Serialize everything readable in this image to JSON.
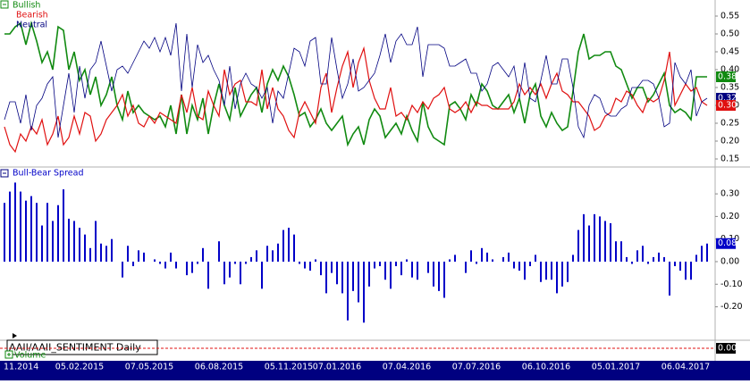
{
  "chart_data": [
    {
      "type": "line",
      "ylim": [
        0.13,
        0.595
      ],
      "yticks": [
        0.15,
        {
          "value": 0.2,
          "label": "0.20"
        },
        0.25,
        {
          "value": 0.3,
          "label": "0.30"
        },
        0.35,
        {
          "value": 0.4,
          "label": "0.40"
        },
        0.45,
        {
          "value": 0.5,
          "label": "0.50"
        },
        0.55
      ],
      "categories": [
        "11.2014",
        null,
        null,
        null,
        null,
        null,
        null,
        null,
        null,
        null,
        null,
        null,
        null,
        null,
        "05.02.2015",
        null,
        null,
        null,
        null,
        null,
        null,
        null,
        null,
        null,
        null,
        null,
        null,
        "07.05.2015",
        null,
        null,
        null,
        null,
        null,
        null,
        null,
        null,
        null,
        null,
        null,
        null,
        "06.08.2015",
        null,
        null,
        null,
        null,
        null,
        null,
        null,
        null,
        null,
        null,
        null,
        null,
        "05.11.2015",
        null,
        null,
        null,
        null,
        null,
        null,
        null,
        null,
        "07.01.2016",
        null,
        null,
        null,
        null,
        null,
        null,
        null,
        null,
        null,
        null,
        null,
        null,
        "07.04.2016",
        null,
        null,
        null,
        null,
        null,
        null,
        null,
        null,
        null,
        null,
        null,
        null,
        "07.07.2016",
        null,
        null,
        null,
        null,
        null,
        null,
        null,
        null,
        null,
        null,
        null,
        null,
        "06.10.2016",
        null,
        null,
        null,
        null,
        null,
        null,
        null,
        null,
        null,
        null,
        null,
        null,
        "05.01.2017",
        null,
        null,
        null,
        null,
        null,
        null,
        null,
        null,
        null,
        null,
        null,
        null,
        "06.04.2017",
        null,
        null,
        null,
        null
      ],
      "series": [
        {
          "name": "Bullish",
          "color": "#118a11",
          "last_value_label": "0.38",
          "values": [
            0.5,
            0.5,
            0.52,
            0.53,
            0.47,
            0.53,
            0.48,
            0.42,
            0.45,
            0.4,
            0.52,
            0.51,
            0.4,
            0.45,
            0.37,
            0.4,
            0.33,
            0.38,
            0.3,
            0.33,
            0.38,
            0.3,
            0.26,
            0.34,
            0.28,
            0.3,
            0.28,
            0.27,
            0.26,
            0.27,
            0.24,
            0.3,
            0.22,
            0.33,
            0.22,
            0.3,
            0.26,
            0.32,
            0.22,
            0.3,
            0.36,
            0.3,
            0.26,
            0.35,
            0.27,
            0.3,
            0.33,
            0.35,
            0.28,
            0.36,
            0.4,
            0.37,
            0.41,
            0.38,
            0.33,
            0.27,
            0.28,
            0.24,
            0.26,
            0.29,
            0.25,
            0.23,
            0.25,
            0.27,
            0.19,
            0.22,
            0.24,
            0.19,
            0.26,
            0.29,
            0.27,
            0.21,
            0.23,
            0.25,
            0.22,
            0.27,
            0.23,
            0.2,
            0.31,
            0.24,
            0.21,
            0.2,
            0.19,
            0.3,
            0.31,
            0.29,
            0.26,
            0.33,
            0.3,
            0.36,
            0.34,
            0.3,
            0.29,
            0.31,
            0.33,
            0.28,
            0.32,
            0.25,
            0.33,
            0.36,
            0.27,
            0.24,
            0.28,
            0.25,
            0.23,
            0.24,
            0.34,
            0.45,
            0.5,
            0.43,
            0.44,
            0.44,
            0.45,
            0.45,
            0.41,
            0.4,
            0.36,
            0.32,
            0.35,
            0.35,
            0.31,
            0.33,
            0.36,
            0.39,
            0.3,
            0.28,
            0.29,
            0.28,
            0.26,
            0.38,
            0.38,
            0.38
          ]
        },
        {
          "name": "Bearish",
          "color": "#e01010",
          "last_value_label": "0.30",
          "values": [
            0.24,
            0.19,
            0.17,
            0.22,
            0.2,
            0.24,
            0.22,
            0.26,
            0.19,
            0.22,
            0.27,
            0.19,
            0.21,
            0.27,
            0.22,
            0.28,
            0.27,
            0.2,
            0.22,
            0.26,
            0.28,
            0.3,
            0.33,
            0.27,
            0.3,
            0.25,
            0.24,
            0.27,
            0.25,
            0.28,
            0.27,
            0.26,
            0.25,
            0.33,
            0.28,
            0.35,
            0.27,
            0.26,
            0.34,
            0.3,
            0.27,
            0.4,
            0.33,
            0.36,
            0.37,
            0.31,
            0.31,
            0.3,
            0.4,
            0.29,
            0.35,
            0.29,
            0.27,
            0.23,
            0.21,
            0.28,
            0.31,
            0.28,
            0.25,
            0.35,
            0.39,
            0.28,
            0.35,
            0.41,
            0.45,
            0.35,
            0.42,
            0.46,
            0.37,
            0.32,
            0.29,
            0.29,
            0.35,
            0.27,
            0.28,
            0.26,
            0.3,
            0.28,
            0.31,
            0.29,
            0.32,
            0.33,
            0.35,
            0.29,
            0.28,
            0.29,
            0.31,
            0.28,
            0.31,
            0.3,
            0.3,
            0.29,
            0.29,
            0.29,
            0.29,
            0.31,
            0.36,
            0.33,
            0.35,
            0.33,
            0.36,
            0.32,
            0.36,
            0.39,
            0.34,
            0.33,
            0.31,
            0.31,
            0.29,
            0.27,
            0.23,
            0.24,
            0.27,
            0.28,
            0.32,
            0.31,
            0.34,
            0.33,
            0.3,
            0.28,
            0.32,
            0.31,
            0.32,
            0.37,
            0.45,
            0.3,
            0.33,
            0.36,
            0.34,
            0.35,
            0.31,
            0.3
          ]
        },
        {
          "name": "Neutral",
          "color": "#000080",
          "last_value_label": "0.32",
          "values": [
            0.26,
            0.31,
            0.31,
            0.25,
            0.33,
            0.23,
            0.3,
            0.32,
            0.36,
            0.38,
            0.21,
            0.3,
            0.39,
            0.28,
            0.41,
            0.32,
            0.4,
            0.42,
            0.48,
            0.41,
            0.34,
            0.4,
            0.41,
            0.39,
            0.42,
            0.45,
            0.48,
            0.46,
            0.49,
            0.45,
            0.49,
            0.44,
            0.53,
            0.34,
            0.5,
            0.35,
            0.47,
            0.42,
            0.44,
            0.4,
            0.37,
            0.3,
            0.41,
            0.29,
            0.36,
            0.39,
            0.36,
            0.35,
            0.32,
            0.35,
            0.25,
            0.34,
            0.32,
            0.39,
            0.46,
            0.45,
            0.41,
            0.48,
            0.49,
            0.36,
            0.36,
            0.49,
            0.4,
            0.32,
            0.36,
            0.43,
            0.34,
            0.35,
            0.37,
            0.39,
            0.44,
            0.5,
            0.42,
            0.48,
            0.5,
            0.47,
            0.47,
            0.52,
            0.38,
            0.47,
            0.47,
            0.47,
            0.46,
            0.41,
            0.41,
            0.42,
            0.43,
            0.39,
            0.39,
            0.34,
            0.36,
            0.41,
            0.42,
            0.4,
            0.38,
            0.41,
            0.32,
            0.42,
            0.32,
            0.31,
            0.37,
            0.44,
            0.36,
            0.36,
            0.43,
            0.43,
            0.35,
            0.24,
            0.21,
            0.3,
            0.33,
            0.32,
            0.28,
            0.27,
            0.27,
            0.29,
            0.3,
            0.35,
            0.35,
            0.37,
            0.37,
            0.36,
            0.32,
            0.24,
            0.25,
            0.42,
            0.38,
            0.36,
            0.4,
            0.27,
            0.31,
            0.32
          ]
        }
      ]
    },
    {
      "type": "bar",
      "ylim": [
        -0.344,
        0.415
      ],
      "yticks": [
        {
          "value": 0.3,
          "label": "0.30"
        },
        {
          "value": 0.2,
          "label": "0.20"
        },
        {
          "value": 0.1,
          "label": "0.10"
        },
        {
          "value": 0,
          "label": "0.00"
        },
        {
          "value": -0.1,
          "label": "-0.10"
        },
        {
          "value": -0.2,
          "label": "-0.20"
        }
      ],
      "series": [
        {
          "name": "Bull-Bear Spread",
          "color": "#0000c8",
          "last_value_label": "0.08",
          "values": [
            0.26,
            0.31,
            0.35,
            0.31,
            0.27,
            0.29,
            0.26,
            0.16,
            0.26,
            0.18,
            0.25,
            0.32,
            0.19,
            0.18,
            0.15,
            0.12,
            0.06,
            0.18,
            0.08,
            0.07,
            0.1,
            0.0,
            -0.07,
            0.07,
            -0.02,
            0.05,
            0.04,
            0.0,
            0.01,
            -0.01,
            -0.03,
            0.04,
            -0.03,
            0.0,
            -0.06,
            -0.05,
            -0.01,
            0.06,
            -0.12,
            0.0,
            0.09,
            -0.1,
            -0.07,
            -0.01,
            -0.1,
            -0.01,
            0.02,
            0.05,
            -0.12,
            0.07,
            0.05,
            0.08,
            0.14,
            0.15,
            0.12,
            -0.01,
            -0.03,
            -0.04,
            0.01,
            -0.06,
            -0.14,
            -0.05,
            -0.1,
            -0.14,
            -0.26,
            -0.13,
            -0.18,
            -0.27,
            -0.11,
            -0.03,
            -0.02,
            -0.08,
            -0.12,
            -0.02,
            -0.06,
            0.01,
            -0.07,
            -0.08,
            0.0,
            -0.05,
            -0.11,
            -0.13,
            -0.16,
            0.01,
            0.03,
            0.0,
            -0.05,
            0.05,
            -0.01,
            0.06,
            0.04,
            0.01,
            0.0,
            0.02,
            0.04,
            -0.03,
            -0.04,
            -0.08,
            -0.02,
            0.03,
            -0.09,
            -0.08,
            -0.08,
            -0.14,
            -0.11,
            -0.09,
            0.03,
            0.14,
            0.21,
            0.16,
            0.21,
            0.2,
            0.18,
            0.17,
            0.09,
            0.09,
            0.02,
            -0.01,
            0.05,
            0.07,
            -0.01,
            0.02,
            0.04,
            0.02,
            -0.15,
            -0.02,
            -0.04,
            -0.08,
            -0.08,
            0.03,
            0.07,
            0.08
          ]
        }
      ]
    },
    {
      "type": "reference",
      "title": "AAII/AAII_SENTIMENT Daily",
      "subtitle": "Volume",
      "ylim": [
        -0.01,
        0.01
      ],
      "reference_value": 0,
      "value_label": "0.00",
      "color": "#e01010"
    }
  ]
}
